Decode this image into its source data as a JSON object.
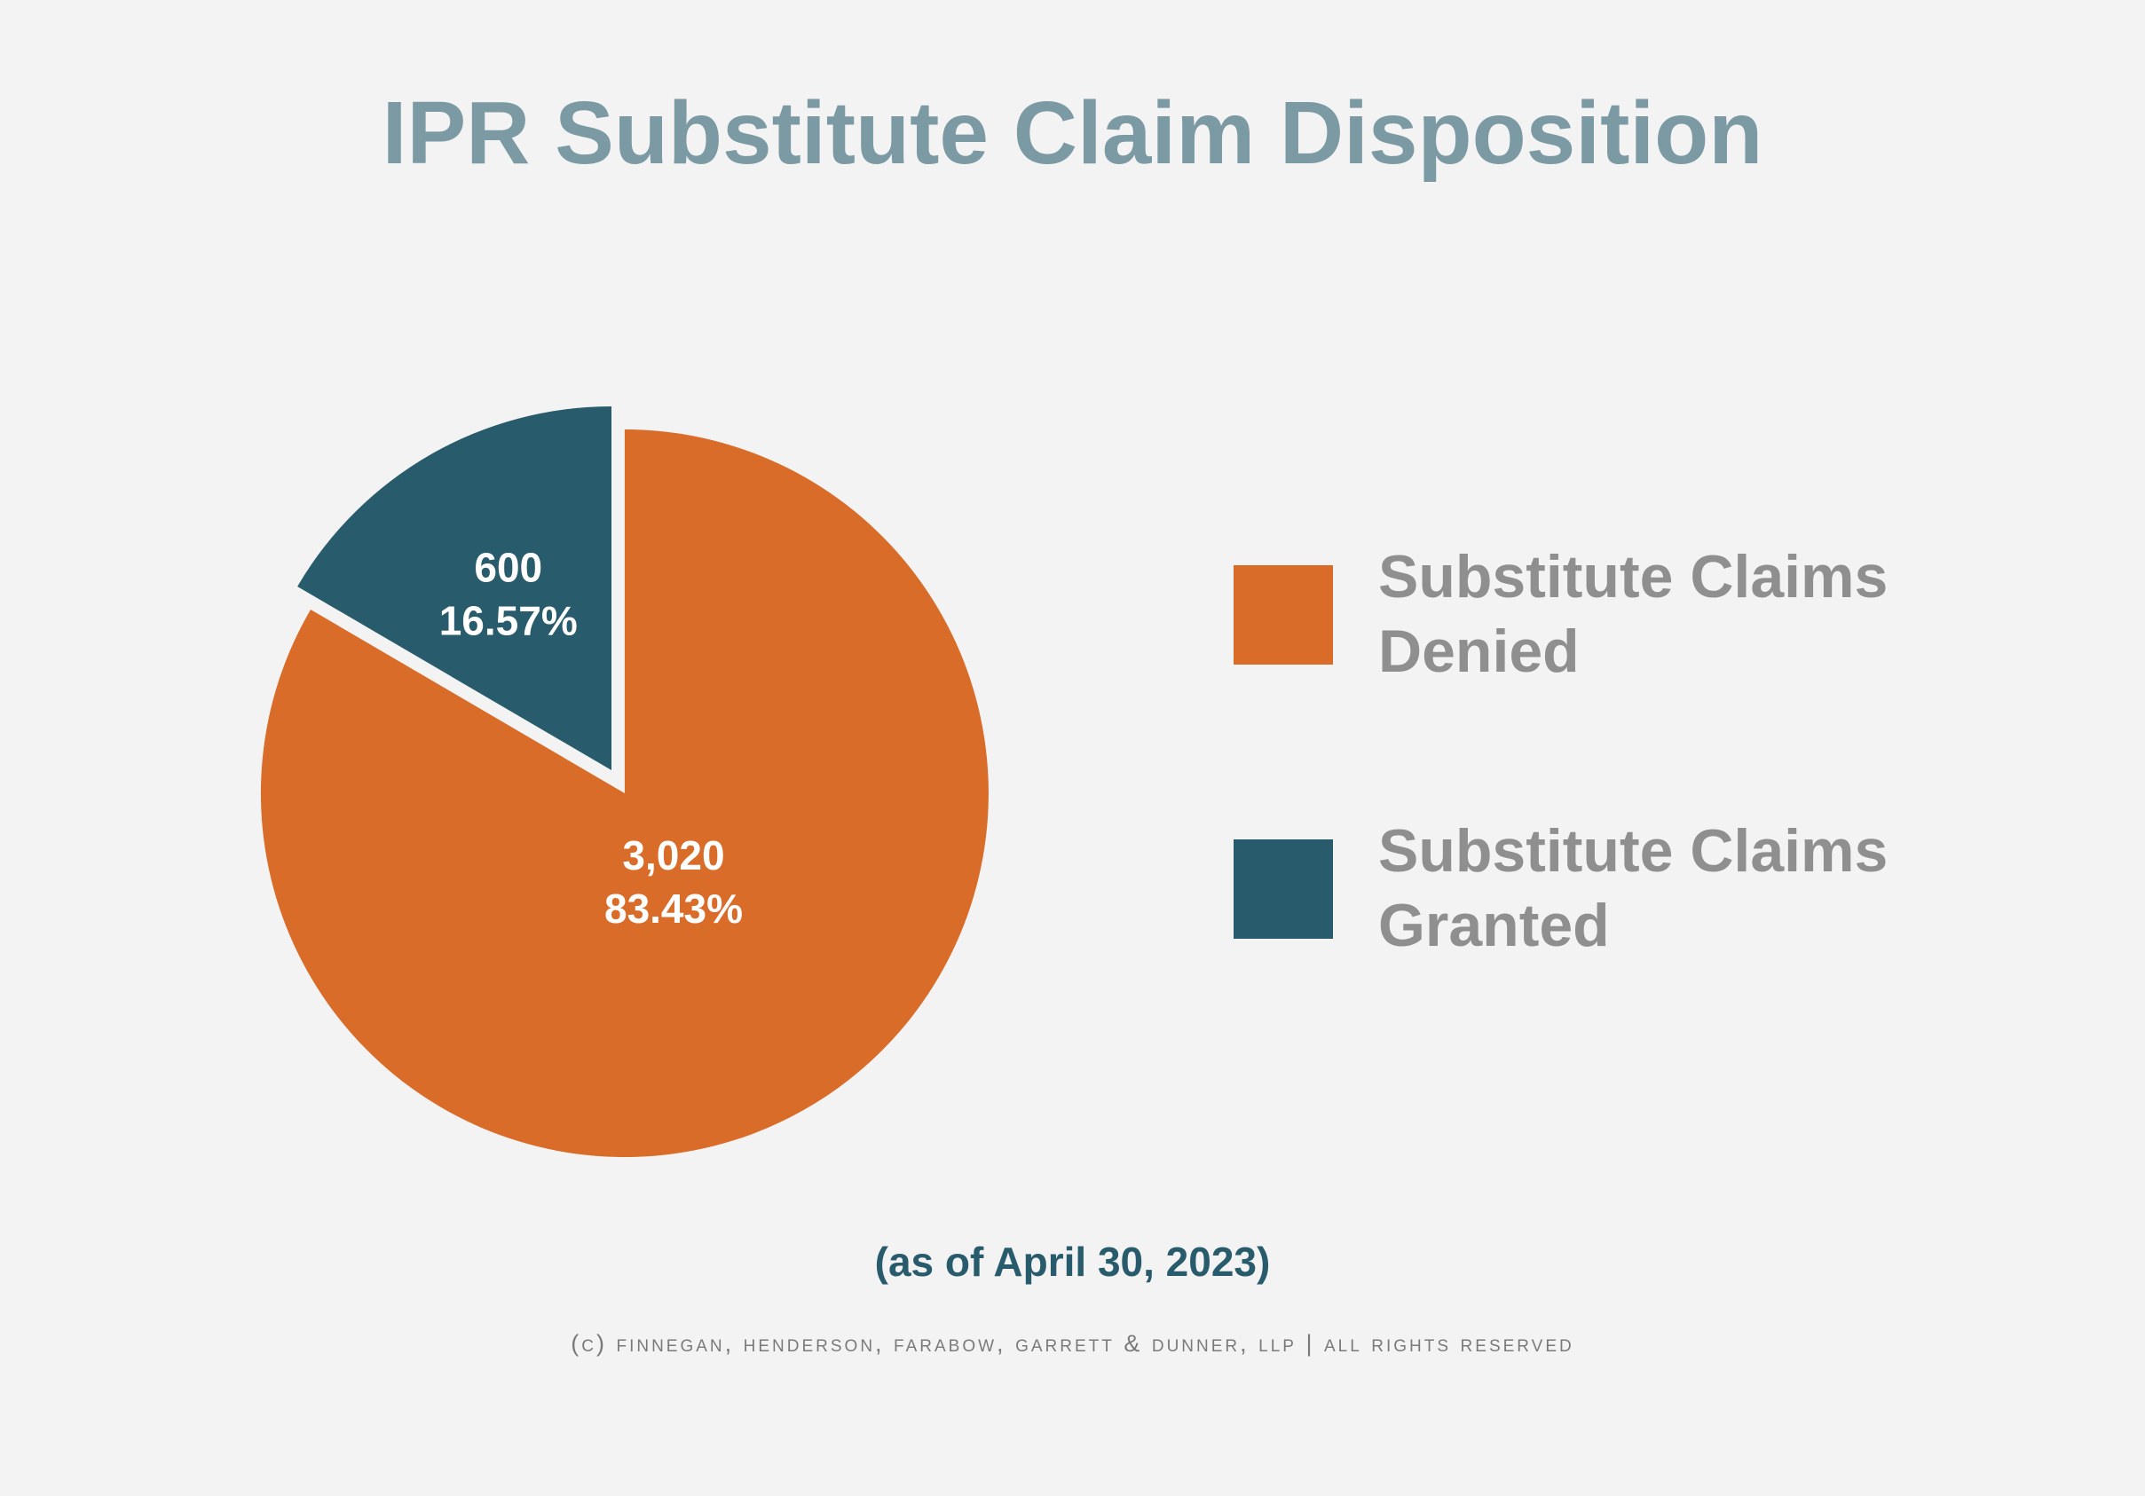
{
  "colors": {
    "background": "#f3f3f3",
    "title": "#7c9aa4",
    "denied": "#d96c28",
    "granted": "#285b6b",
    "legend_text": "#8f8f8f",
    "slice_label": "#ffffff",
    "subtitle": "#285b6b",
    "copyright": "#7a7a7a"
  },
  "chart_data": {
    "type": "pie",
    "title": "IPR Substitute Claim Disposition",
    "subtitle": "(as of April 30, 2023)",
    "legend_position": "right",
    "slices": [
      {
        "name": "Substitute Claims Denied",
        "value": 3020,
        "value_label": "3,020",
        "percent": 83.43,
        "percent_label": "83.43%",
        "color": "#d96c28",
        "exploded": true
      },
      {
        "name": "Substitute Claims Granted",
        "value": 600,
        "value_label": "600",
        "percent": 16.57,
        "percent_label": "16.57%",
        "color": "#285b6b",
        "exploded": false
      }
    ]
  },
  "footer": {
    "copyright": "(c) finnegan, henderson, farabow, garrett & dunner, llp | all rights reserved"
  }
}
